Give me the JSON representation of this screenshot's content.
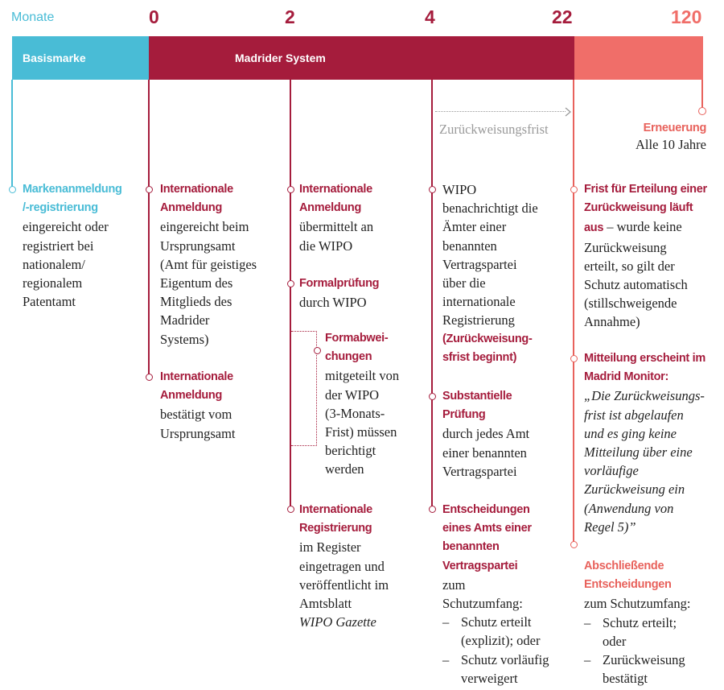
{
  "header": {
    "unit_label": "Monate",
    "months": [
      "0",
      "2",
      "4",
      "22",
      "120"
    ]
  },
  "bar": {
    "basismarke": "Basismarke",
    "madrid": "Madrider System"
  },
  "colors": {
    "cyan": "#49bcd6",
    "dark_red": "#a51c3c",
    "coral": "#f06e69",
    "text": "#222222",
    "grey": "#9a9a9a"
  },
  "zurueck": {
    "label": "Zurückweisungsfrist"
  },
  "erneuerung": {
    "title": "Erneuerung",
    "text": "Alle 10 Jahre"
  },
  "col1": {
    "title": [
      "Markenanmeldung",
      "/-registrierung"
    ],
    "text": [
      "eingereicht oder",
      "registriert bei",
      "nationalem/",
      "regionalem",
      "Patentamt"
    ]
  },
  "col2": {
    "e1_title": [
      "Internationale",
      "Anmeldung"
    ],
    "e1_text": [
      "eingereicht beim",
      "Ursprungsamt",
      "(Amt für geistiges",
      "Eigentum des",
      "Mitglieds des",
      "Madrider",
      "Systems)"
    ],
    "e2_title": [
      "Internationale",
      "Anmeldung"
    ],
    "e2_text": [
      "bestätigt vom",
      "Ursprungsamt"
    ]
  },
  "col3": {
    "e1_title": [
      "Internationale",
      "Anmeldung"
    ],
    "e1_text": [
      "übermittelt an",
      "die WIPO"
    ],
    "e2_title": [
      "Formalprüfung"
    ],
    "e2_text": [
      "durch WIPO"
    ],
    "e3_title": [
      "Formabwei-",
      "chungen"
    ],
    "e3_text": [
      "mitgeteilt von",
      "der WIPO",
      "(3-Monats-",
      "Frist) müssen",
      "berichtigt",
      "werden"
    ],
    "e4_title": [
      "Internationale",
      "Registrierung"
    ],
    "e4_text": [
      "im Register",
      "eingetragen und",
      "veröffentlicht im",
      "Amtsblatt"
    ],
    "e4_italic": "WIPO Gazette"
  },
  "col4": {
    "e1_text": [
      "WIPO",
      "benachrichtigt die",
      "Ämter einer",
      "benannten",
      "Vertragspartei",
      "über die",
      "internationale",
      "Registrierung"
    ],
    "e1_bold": [
      "(Zurückweisung-",
      "sfrist beginnt)"
    ],
    "e2_title": [
      "Substantielle",
      "Prüfung"
    ],
    "e2_text": [
      "durch jedes Amt",
      "einer benannten",
      "Vertragspartei"
    ],
    "e3_title": [
      "Entscheidungen",
      "eines Amts einer",
      "benannten",
      "Vertragspartei"
    ],
    "e3_text": [
      "zum",
      "Schutzumfang:"
    ],
    "e3_items": [
      [
        "Schutz erteilt",
        "(explizit); oder"
      ],
      [
        "Schutz vorläufig",
        "verweigert"
      ]
    ]
  },
  "col5": {
    "e1_title": [
      "Frist für Erteilung einer",
      "Zurückweisung läuft",
      "aus"
    ],
    "e1_rest": " – wurde keine",
    "e1_text": [
      "Zurückweisung",
      "erteilt, so gilt der",
      "Schutz automatisch",
      "(stillschweigende",
      "Annahme)"
    ],
    "e2_title": [
      "Mitteilung erscheint im",
      "Madrid Monitor:"
    ],
    "e2_italic": [
      "„Die Zurückweisungs-",
      "frist ist abgelaufen",
      "und es ging keine",
      "Mitteilung über eine",
      "vorläufige",
      "Zurückweisung ein",
      "(Anwendung von",
      "Regel 5)”"
    ],
    "e3_title": [
      "Abschließende",
      "Entscheidungen"
    ],
    "e3_text": [
      "zum Schutzumfang:"
    ],
    "e3_items": [
      [
        "Schutz erteilt;",
        "oder"
      ],
      [
        "Zurückweisung",
        "bestätigt"
      ]
    ],
    "dash": "–"
  }
}
